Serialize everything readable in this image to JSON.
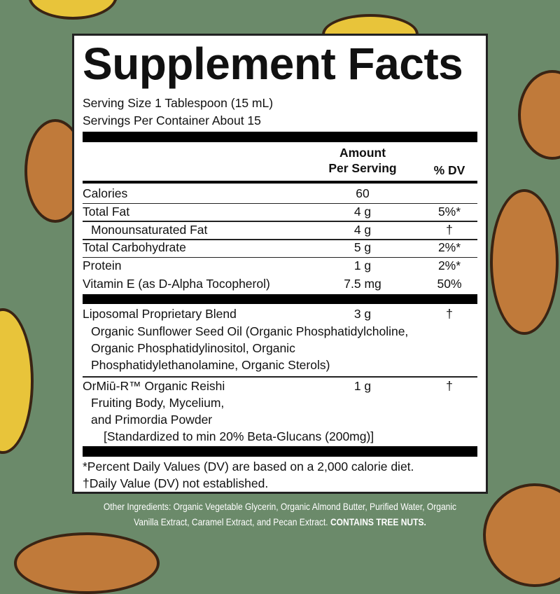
{
  "title": "Supplement Facts",
  "serving_size": "Serving Size 1 Tablespoon (15 mL)",
  "servings_per_container": "Servings Per Container About 15",
  "header": {
    "amount_line1": "Amount",
    "amount_line2": "Per Serving",
    "dv": "% DV"
  },
  "rows": [
    {
      "name": "Calories",
      "amount": "60",
      "dv": ""
    },
    {
      "name": "Total Fat",
      "amount": "4 g",
      "dv": "5%*"
    },
    {
      "name": "Monounsaturated Fat",
      "amount": "4 g",
      "dv": "†"
    },
    {
      "name": "Total Carbohydrate",
      "amount": "5 g",
      "dv": "2%*"
    },
    {
      "name": "Protein",
      "amount": "1 g",
      "dv": "2%*"
    },
    {
      "name": "Vitamin E (as D-Alpha Tocopherol)",
      "amount": "7.5 mg",
      "dv": "50%"
    }
  ],
  "blend": {
    "name": "Liposomal Proprietary Blend",
    "amount": "3 g",
    "dv": "†",
    "lines": [
      "Organic Sunflower Seed Oil (Organic Phosphatidylcholine,",
      "Organic Phosphatidylinositol, Organic",
      "Phosphatidylethanolamine, Organic Sterols)"
    ]
  },
  "reishi": {
    "name": "OrMiū-R™ Organic Reishi",
    "amount": "1 g",
    "dv": "†",
    "lines": [
      "Fruiting Body, Mycelium,",
      "and Primordia Powder"
    ],
    "standardized": "[Standardized to min 20% Beta-Glucans (200mg)]"
  },
  "footnotes": [
    "*Percent Daily Values (DV) are based on a 2,000 calorie diet.",
    "†Daily Value (DV) not established."
  ],
  "other_ingredients": {
    "text": "Other Ingredients: Organic Vegetable Glycerin, Organic Almond Butter, Purified Water, Organic Vanilla Extract, Caramel Extract, and Pecan Extract.",
    "warning": "CONTAINS TREE NUTS."
  },
  "colors": {
    "background": "#6b8a6a",
    "pecan": "#c07a3a",
    "reishi": "#e8c43a"
  }
}
